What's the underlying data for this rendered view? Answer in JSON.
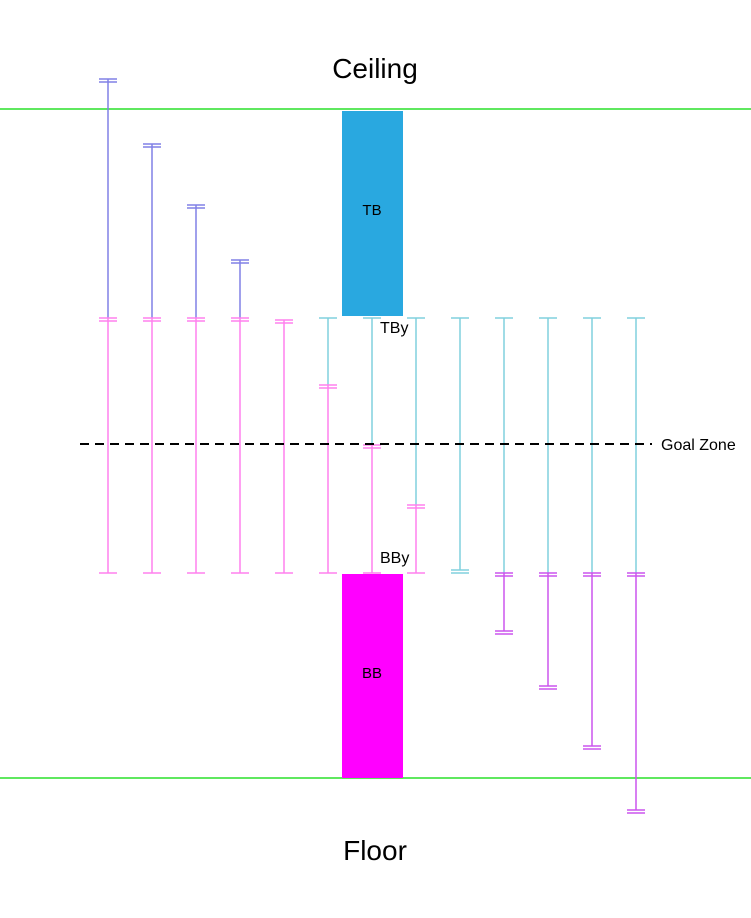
{
  "labels": {
    "ceiling": "Ceiling",
    "floor": "Floor",
    "top_block": "TB",
    "bottom_block": "BB",
    "top_block_y": "TBy",
    "bottom_block_y": "BBy",
    "goal_zone": "Goal Zone"
  },
  "colors": {
    "boundary": "#5fe85f",
    "top_block": "#29a8e0",
    "bottom_block": "#ff00ff",
    "upper_range": "#8080e6",
    "lower_range": "#ff80ee",
    "upper_range_short": "#80d0dd",
    "lower_range_long": "#cc55ee",
    "goal_line": "#000000"
  }
}
